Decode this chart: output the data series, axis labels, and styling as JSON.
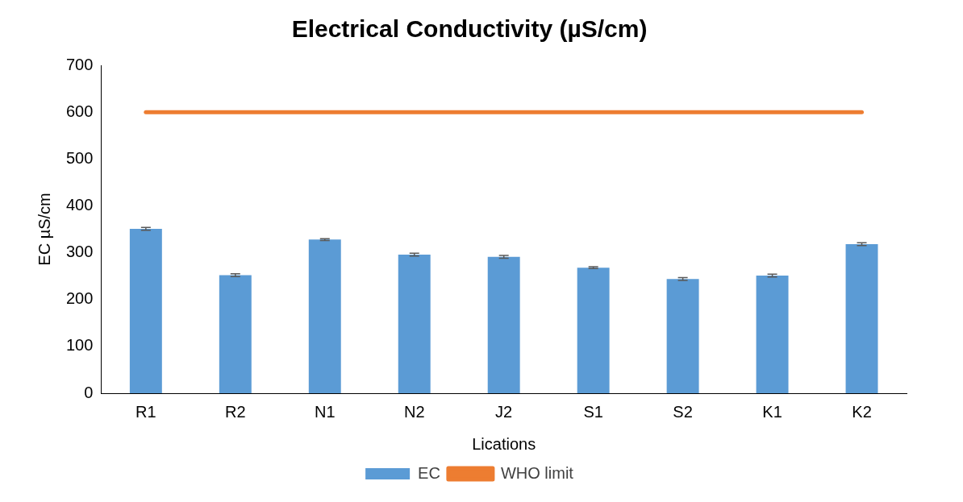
{
  "chart_data": {
    "type": "bar",
    "title": "Electrical Conductivity (µS/cm)",
    "xlabel": "Lications",
    "ylabel": "EC µS/cm",
    "categories": [
      "R1",
      "R2",
      "N1",
      "N2",
      "J2",
      "S1",
      "S2",
      "K1",
      "K2"
    ],
    "series": [
      {
        "name": "EC",
        "color": "#5b9bd5",
        "values": [
          351,
          252,
          328,
          296,
          291,
          268,
          244,
          251,
          318
        ],
        "errors": [
          3,
          3,
          2,
          3,
          3,
          2,
          3,
          3,
          3
        ]
      },
      {
        "name": "WHO limit",
        "type": "line",
        "color": "#ed7d31",
        "values": [
          600,
          600,
          600,
          600,
          600,
          600,
          600,
          600,
          600
        ]
      }
    ],
    "ylim": [
      0,
      700
    ],
    "yticks": [
      0,
      100,
      200,
      300,
      400,
      500,
      600,
      700
    ],
    "grid": false,
    "legend": "bottom",
    "marker": "none",
    "line_style": "solid"
  }
}
